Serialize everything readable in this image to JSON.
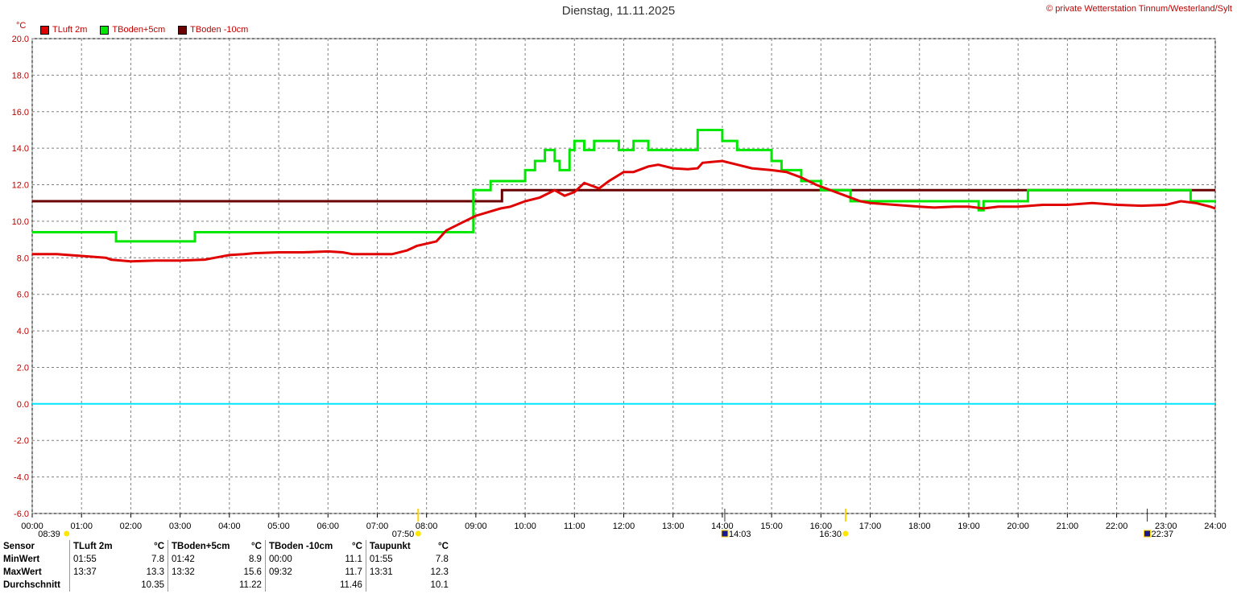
{
  "header": {
    "title": "Dienstag, 11.11.2025",
    "copyright": "© private Wetterstation Tinnum/Westerland/Sylt",
    "unit": "°C"
  },
  "colors": {
    "tluft": "#e00000",
    "tboden5": "#00e800",
    "tboden10": "#6a0000",
    "zero_line": "#00e5ff",
    "grid": "#808080",
    "axis_label": "#c00000"
  },
  "sun_events": [
    {
      "time": "08:39",
      "x": 0.65,
      "kind": "sunrise-marker"
    },
    {
      "time": "07:50",
      "x": 7.83,
      "kind": "sunrise"
    },
    {
      "time": "14:03",
      "x": 14.05,
      "kind": "moon"
    },
    {
      "time": "16:30",
      "x": 16.5,
      "kind": "sunset"
    },
    {
      "time": "22:37",
      "x": 22.62,
      "kind": "moon"
    }
  ],
  "chart_data": {
    "type": "line",
    "title": "Dienstag, 11.11.2025",
    "xlabel": "",
    "ylabel": "°C",
    "xlim": [
      0,
      24
    ],
    "ylim": [
      -6,
      20
    ],
    "x_ticks": [
      "00:00",
      "01:00",
      "02:00",
      "03:00",
      "04:00",
      "05:00",
      "06:00",
      "07:00",
      "08:00",
      "09:00",
      "10:00",
      "11:00",
      "12:00",
      "13:00",
      "14:00",
      "15:00",
      "16:00",
      "17:00",
      "18:00",
      "19:00",
      "20:00",
      "21:00",
      "22:00",
      "23:00",
      "24:00"
    ],
    "y_ticks": [
      "20.0",
      "18.0",
      "16.0",
      "14.0",
      "12.0",
      "10.0",
      "8.0",
      "6.0",
      "4.0",
      "2.0",
      "0.0",
      "-2.0",
      "-4.0",
      "-6.0"
    ],
    "grid": true,
    "legend_position": "top-left",
    "series": [
      {
        "name": "TLuft 2m",
        "color": "#e00000",
        "points": [
          [
            0,
            8.2
          ],
          [
            0.5,
            8.2
          ],
          [
            1.0,
            8.1
          ],
          [
            1.5,
            8.0
          ],
          [
            1.6,
            7.9
          ],
          [
            2.0,
            7.8
          ],
          [
            2.5,
            7.85
          ],
          [
            3.0,
            7.85
          ],
          [
            3.5,
            7.9
          ],
          [
            3.7,
            8.0
          ],
          [
            4.0,
            8.15
          ],
          [
            4.3,
            8.2
          ],
          [
            4.5,
            8.25
          ],
          [
            5.0,
            8.3
          ],
          [
            5.5,
            8.3
          ],
          [
            6.0,
            8.35
          ],
          [
            6.3,
            8.3
          ],
          [
            6.5,
            8.2
          ],
          [
            7.0,
            8.2
          ],
          [
            7.3,
            8.2
          ],
          [
            7.6,
            8.4
          ],
          [
            7.8,
            8.65
          ],
          [
            8.2,
            8.9
          ],
          [
            8.4,
            9.5
          ],
          [
            8.7,
            9.9
          ],
          [
            9.0,
            10.3
          ],
          [
            9.5,
            10.7
          ],
          [
            9.7,
            10.8
          ],
          [
            10.0,
            11.1
          ],
          [
            10.3,
            11.3
          ],
          [
            10.6,
            11.7
          ],
          [
            10.8,
            11.4
          ],
          [
            11.0,
            11.6
          ],
          [
            11.2,
            12.1
          ],
          [
            11.5,
            11.8
          ],
          [
            11.7,
            12.2
          ],
          [
            12.0,
            12.7
          ],
          [
            12.2,
            12.7
          ],
          [
            12.5,
            13.0
          ],
          [
            12.7,
            13.1
          ],
          [
            13.0,
            12.9
          ],
          [
            13.3,
            12.85
          ],
          [
            13.5,
            12.9
          ],
          [
            13.6,
            13.2
          ],
          [
            14.0,
            13.3
          ],
          [
            14.3,
            13.1
          ],
          [
            14.6,
            12.9
          ],
          [
            15.0,
            12.8
          ],
          [
            15.3,
            12.7
          ],
          [
            15.6,
            12.4
          ],
          [
            15.9,
            12.0
          ],
          [
            16.1,
            11.8
          ],
          [
            16.5,
            11.4
          ],
          [
            16.8,
            11.1
          ],
          [
            17.0,
            11.0
          ],
          [
            17.5,
            10.9
          ],
          [
            18.0,
            10.8
          ],
          [
            18.3,
            10.75
          ],
          [
            18.7,
            10.8
          ],
          [
            19.0,
            10.8
          ],
          [
            19.3,
            10.7
          ],
          [
            19.6,
            10.8
          ],
          [
            20.0,
            10.8
          ],
          [
            20.5,
            10.9
          ],
          [
            21.0,
            10.9
          ],
          [
            21.5,
            11.0
          ],
          [
            22.0,
            10.9
          ],
          [
            22.5,
            10.85
          ],
          [
            23.0,
            10.9
          ],
          [
            23.3,
            11.1
          ],
          [
            23.6,
            11.0
          ],
          [
            23.9,
            10.8
          ],
          [
            24.0,
            10.7
          ]
        ]
      },
      {
        "name": "TBoden+5cm",
        "color": "#00e800",
        "points": [
          [
            0,
            9.4
          ],
          [
            1.7,
            9.4
          ],
          [
            1.7,
            8.9
          ],
          [
            3.3,
            8.9
          ],
          [
            3.3,
            9.4
          ],
          [
            8.95,
            9.4
          ],
          [
            8.95,
            11.7
          ],
          [
            9.3,
            11.7
          ],
          [
            9.3,
            12.2
          ],
          [
            9.7,
            12.2
          ],
          [
            9.7,
            12.2
          ],
          [
            10.0,
            12.2
          ],
          [
            10.0,
            12.8
          ],
          [
            10.2,
            12.8
          ],
          [
            10.2,
            13.3
          ],
          [
            10.4,
            13.3
          ],
          [
            10.4,
            13.9
          ],
          [
            10.6,
            13.9
          ],
          [
            10.6,
            13.3
          ],
          [
            10.7,
            13.3
          ],
          [
            10.7,
            12.8
          ],
          [
            10.9,
            12.8
          ],
          [
            10.9,
            13.9
          ],
          [
            11.0,
            13.9
          ],
          [
            11.0,
            14.4
          ],
          [
            11.2,
            14.4
          ],
          [
            11.2,
            13.9
          ],
          [
            11.4,
            13.9
          ],
          [
            11.4,
            14.4
          ],
          [
            11.9,
            14.4
          ],
          [
            11.9,
            13.9
          ],
          [
            12.2,
            13.9
          ],
          [
            12.2,
            14.4
          ],
          [
            12.5,
            14.4
          ],
          [
            12.5,
            13.9
          ],
          [
            13.0,
            13.9
          ],
          [
            13.0,
            13.9
          ],
          [
            13.5,
            13.9
          ],
          [
            13.5,
            15.0
          ],
          [
            14.0,
            15.0
          ],
          [
            14.0,
            14.4
          ],
          [
            14.3,
            14.4
          ],
          [
            14.3,
            13.9
          ],
          [
            15.0,
            13.9
          ],
          [
            15.0,
            13.3
          ],
          [
            15.2,
            13.3
          ],
          [
            15.2,
            12.8
          ],
          [
            15.6,
            12.8
          ],
          [
            15.6,
            12.2
          ],
          [
            16.0,
            12.2
          ],
          [
            16.0,
            11.7
          ],
          [
            16.6,
            11.7
          ],
          [
            16.6,
            11.1
          ],
          [
            19.2,
            11.1
          ],
          [
            19.2,
            10.6
          ],
          [
            19.3,
            10.6
          ],
          [
            19.3,
            11.1
          ],
          [
            20.2,
            11.1
          ],
          [
            20.2,
            11.7
          ],
          [
            23.5,
            11.7
          ],
          [
            23.5,
            11.1
          ],
          [
            24.0,
            11.1
          ]
        ]
      },
      {
        "name": "TBoden -10cm",
        "color": "#6a0000",
        "points": [
          [
            0,
            11.1
          ],
          [
            9.53,
            11.1
          ],
          [
            9.53,
            11.7
          ],
          [
            24.0,
            11.7
          ]
        ]
      },
      {
        "name": "zero",
        "color": "#00e5ff",
        "points": [
          [
            0,
            0
          ],
          [
            24,
            0
          ]
        ]
      }
    ]
  },
  "stats": {
    "headers": [
      "Sensor",
      "TLuft 2m",
      "°C",
      "TBoden+5cm",
      "°C",
      "TBoden -10cm",
      "°C",
      "Taupunkt",
      "°C"
    ],
    "rows": [
      {
        "label": "MinWert",
        "c1t": "01:55",
        "c1v": "7.8",
        "c2t": "01:42",
        "c2v": "8.9",
        "c3t": "00:00",
        "c3v": "11.1",
        "c4t": "01:55",
        "c4v": "7.8"
      },
      {
        "label": "MaxWert",
        "c1t": "13:37",
        "c1v": "13.3",
        "c2t": "13:32",
        "c2v": "15.6",
        "c3t": "09:32",
        "c3v": "11.7",
        "c4t": "13:31",
        "c4v": "12.3"
      },
      {
        "label": "Durchschnitt",
        "c1t": "",
        "c1v": "10.35",
        "c2t": "",
        "c2v": "11.22",
        "c3t": "",
        "c3v": "11.46",
        "c4t": "",
        "c4v": "10.1"
      }
    ]
  }
}
